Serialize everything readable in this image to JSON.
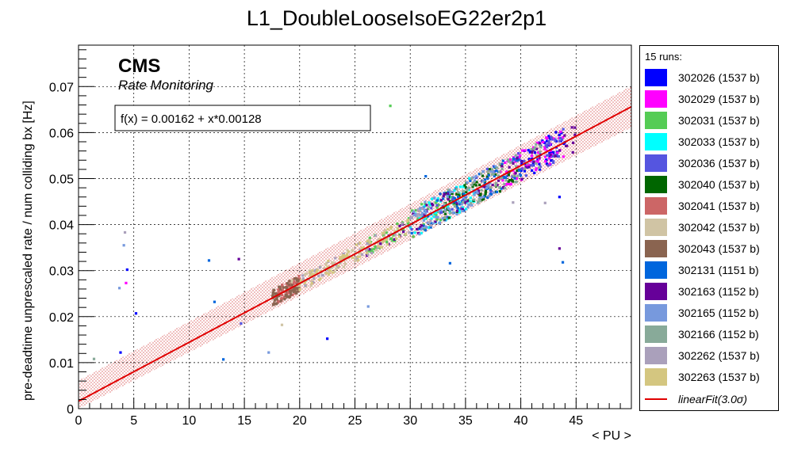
{
  "chart_data": {
    "type": "scatter",
    "title": "L1_DoubleLooseIsoEG22er2p1",
    "xlabel": "< PU >",
    "ylabel": "pre-deadtime unprescaled rate / num colliding bx [Hz]",
    "xlim": [
      0,
      50
    ],
    "ylim": [
      0,
      0.079
    ],
    "x_ticks": [
      "0",
      "5",
      "10",
      "15",
      "20",
      "25",
      "30",
      "35",
      "40",
      "45"
    ],
    "y_ticks": [
      "0",
      "0.01",
      "0.02",
      "0.03",
      "0.04",
      "0.05",
      "0.06",
      "0.07"
    ],
    "grid": true,
    "cms_label": "CMS",
    "cms_sublabel": "Rate Monitoring",
    "fit": {
      "formula_text": "f(x) = 0.00162 + x*0.00128",
      "intercept": 0.00162,
      "slope": 0.00128,
      "band_sigma": 3.0,
      "band_halfwidth": 0.0045,
      "color": "#e00000"
    },
    "legend": {
      "header": "15 runs:",
      "fit_label": "linearFit(3.0σ)",
      "placement": "right"
    },
    "series": [
      {
        "name": "302026 (1537 b)",
        "color": "#0000ff",
        "x_range": [
          40,
          44
        ],
        "outliers": [
          [
            3.8,
            0.0122
          ],
          [
            5.2,
            0.0207
          ],
          [
            4.4,
            0.0302
          ],
          [
            22.5,
            0.0152
          ],
          [
            43.5,
            0.046
          ]
        ]
      },
      {
        "name": "302029 (1537 b)",
        "color": "#ff00ff",
        "x_range": [
          38,
          44
        ],
        "outliers": [
          [
            4.3,
            0.0273
          ]
        ]
      },
      {
        "name": "302031 (1537 b)",
        "color": "#55cc55",
        "x_range": [
          26,
          34
        ],
        "outliers": [
          [
            28.2,
            0.0658
          ]
        ]
      },
      {
        "name": "302033 (1537 b)",
        "color": "#00ffff",
        "x_range": [
          30,
          36
        ],
        "outliers": []
      },
      {
        "name": "302036 (1537 b)",
        "color": "#5555e0",
        "x_range": [
          30,
          44
        ],
        "outliers": [
          [
            14.7,
            0.0185
          ]
        ]
      },
      {
        "name": "302040 (1537 b)",
        "color": "#006600",
        "x_range": [
          33,
          40
        ],
        "outliers": []
      },
      {
        "name": "302041 (1537 b)",
        "color": "#cc6666",
        "x_range": [
          18,
          20
        ],
        "outliers": []
      },
      {
        "name": "302042 (1537 b)",
        "color": "#d0c4a4",
        "x_range": [
          19,
          28
        ],
        "outliers": [
          [
            18.4,
            0.0182
          ]
        ]
      },
      {
        "name": "302043 (1537 b)",
        "color": "#8a6450",
        "x_range": [
          17.5,
          20
        ],
        "outliers": []
      },
      {
        "name": "302131 (1151 b)",
        "color": "#0066dd",
        "x_range": [
          30,
          40
        ],
        "outliers": [
          [
            11.8,
            0.0322
          ],
          [
            12.3,
            0.0232
          ],
          [
            13.1,
            0.0107
          ],
          [
            31.4,
            0.0505
          ],
          [
            33.6,
            0.0316
          ],
          [
            43.8,
            0.0318
          ]
        ]
      },
      {
        "name": "302163 (1152 b)",
        "color": "#660099",
        "x_range": [
          26,
          45
        ],
        "outliers": [
          [
            14.5,
            0.0325
          ],
          [
            43.5,
            0.0348
          ]
        ]
      },
      {
        "name": "302165 (1152 b)",
        "color": "#7799dd",
        "x_range": [
          30,
          38
        ],
        "outliers": [
          [
            3.7,
            0.0262
          ],
          [
            4.1,
            0.0355
          ],
          [
            26.2,
            0.0222
          ],
          [
            17.2,
            0.0122
          ]
        ]
      },
      {
        "name": "302166 (1152 b)",
        "color": "#88aa99",
        "x_range": [
          33,
          42
        ],
        "outliers": [
          [
            1.4,
            0.0108
          ]
        ]
      },
      {
        "name": "302262 (1537 b)",
        "color": "#aaa0bb",
        "x_range": [
          20,
          32
        ],
        "outliers": [
          [
            4.2,
            0.0383
          ],
          [
            39.3,
            0.0448
          ],
          [
            42.2,
            0.0447
          ]
        ]
      },
      {
        "name": "302263 (1537 b)",
        "color": "#d4c680",
        "x_range": [
          20,
          30
        ],
        "outliers": []
      }
    ]
  }
}
